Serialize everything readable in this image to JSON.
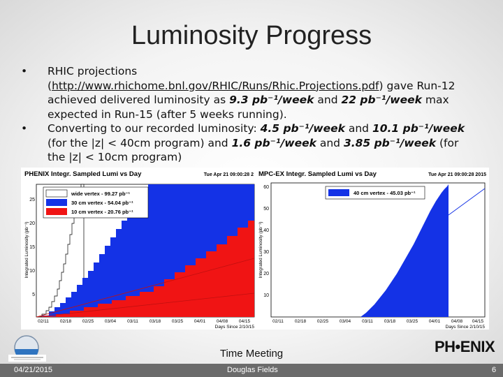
{
  "slide": {
    "title": "Luminosity Progress",
    "bullets": [
      {
        "pre": "RHIC projections (",
        "link": "http://www.rhichome.bnl.gov/RHIC/Runs/Rhic.Projections.pdf",
        "post1": ") gave Run-12 achieved delivered luminosity as ",
        "em1": "9.3 pb⁻¹/week",
        "post2": " and ",
        "em2": "22 pb⁻¹/week",
        "post3": " max expected in Run-15 (after 5 weeks running)."
      },
      {
        "pre": "Converting to our recorded luminosity: ",
        "em1": "4.5 pb⁻¹/week",
        "mid1": " and ",
        "em2": "10.1 pb⁻¹/week",
        "mid2": " (for the |z| < 40cm program) and ",
        "em3": "1.6 pb⁻¹/week",
        "mid3": " and ",
        "em4": "3.85 pb⁻¹/week",
        "post": " (for the |z| < 10cm program)"
      }
    ],
    "footer": {
      "meeting": "Time Meeting",
      "date": "04/21/2015",
      "author": "Douglas Fields",
      "page": "6",
      "logo_text": "PH•ENIX"
    }
  },
  "plots": {
    "left": {
      "title": "PHENIX Integr. Sampled Lumi vs Day",
      "timestamp": "Tue Apr 21 09:00:28 2",
      "ylabel": "Integrated Luminosity (pb⁻¹)",
      "xlabel": "Days Since 2/10/15",
      "yticks": [
        "5",
        "10",
        "15",
        "20",
        "25"
      ],
      "xticks": [
        "02/11",
        "02/18",
        "02/25",
        "03/04",
        "03/11",
        "03/18",
        "03/25",
        "04/01",
        "04/08",
        "04/15"
      ],
      "legend": [
        {
          "label": "wide vertex - 99.27 pb⁻¹",
          "color": "#ffffff"
        },
        {
          "label": "30 cm vertex - 54.04 pb⁻¹",
          "color": "#1432e6"
        },
        {
          "label": "10 cm vertex - 20.76 pb⁻¹",
          "color": "#f01414"
        }
      ]
    },
    "right": {
      "title": "MPC-EX Integr. Sampled Lumi vs Day",
      "timestamp": "Tue Apr 21 09:00:28 2015",
      "ylabel": "Integrated Luminosity (pb⁻¹)",
      "xlabel": "Days Since 2/10/15",
      "yticks": [
        "10",
        "20",
        "30",
        "40",
        "50",
        "60"
      ],
      "xticks": [
        "02/11",
        "02/18",
        "02/25",
        "03/04",
        "03/11",
        "03/18",
        "03/25",
        "04/01",
        "04/08",
        "04/15"
      ],
      "legend": [
        {
          "label": "40 cm vertex - 45.03 pb⁻¹",
          "color": "#1432e6"
        }
      ]
    }
  }
}
